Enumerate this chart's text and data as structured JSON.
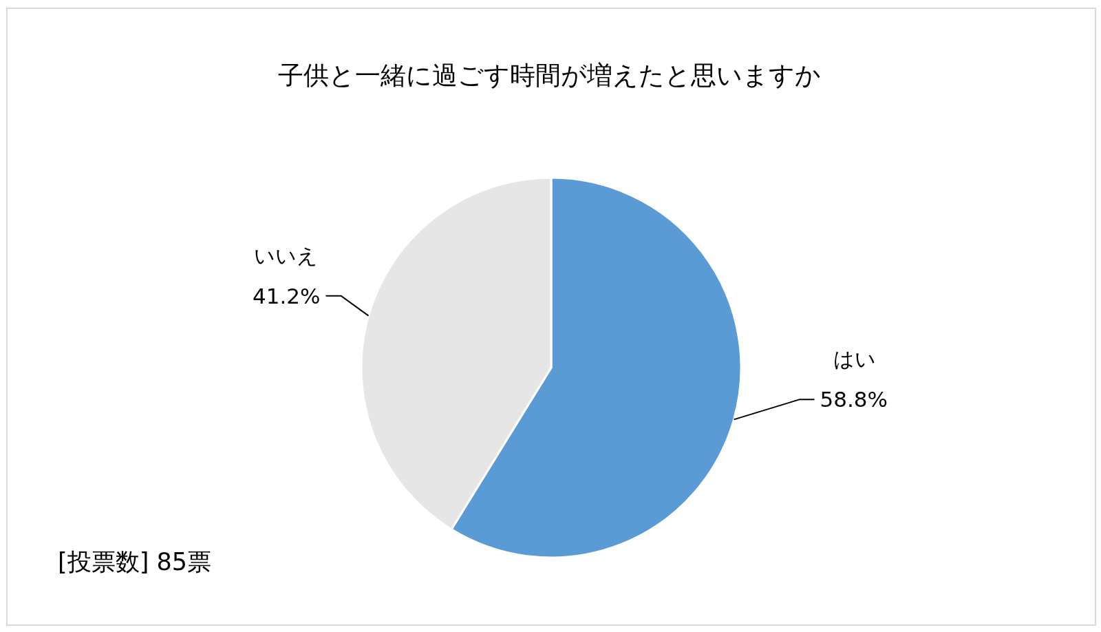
{
  "chart_data": {
    "type": "pie",
    "title": "子供と一緒に過ごす時間が増えたと思いますか",
    "categories": [
      "はい",
      "いいえ"
    ],
    "values": [
      58.8,
      41.2
    ],
    "colors": [
      "#5b9bd5",
      "#e7e6e6"
    ],
    "value_labels": [
      "58.8%",
      "41.2%"
    ],
    "annotations": [
      "[投票数] 85票"
    ]
  }
}
